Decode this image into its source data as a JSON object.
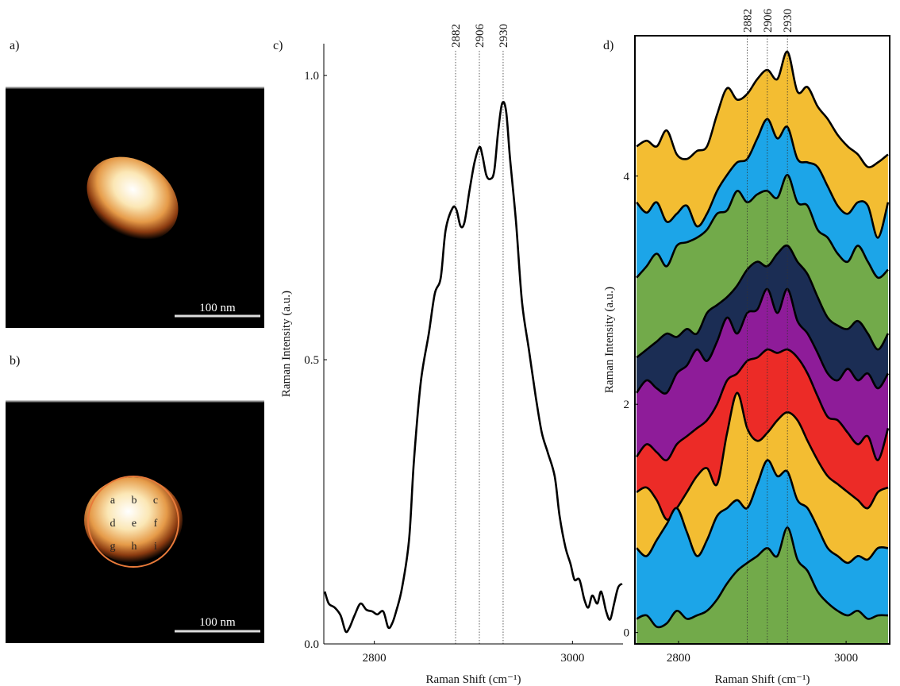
{
  "panel_labels": [
    "a)",
    "b)",
    "c)",
    "d)"
  ],
  "images": [
    {
      "scale_bar": "100 nm"
    },
    {
      "scale_bar": "100 nm",
      "grid_labels": [
        "a",
        "b",
        "c",
        "d",
        "e",
        "f",
        "g",
        "h",
        "i"
      ]
    }
  ],
  "chart_data": [
    {
      "type": "line",
      "x_label": "Raman Shift (cm⁻¹)",
      "y_label": "Raman Intensity (a.u.)",
      "xlim": [
        2749,
        3051
      ],
      "ylim": [
        0,
        1.056
      ],
      "xticks": [
        2800,
        3000
      ],
      "yticks": [
        {
          "value": 0,
          "label": "0.0"
        },
        {
          "value": 0.5,
          "label": "0.5"
        },
        {
          "value": 1,
          "label": "1.0"
        }
      ],
      "peaks": [
        2882,
        2906,
        2930
      ],
      "x": [
        2750,
        2754,
        2760,
        2766,
        2771,
        2775,
        2780,
        2786,
        2792,
        2798,
        2803,
        2809,
        2814,
        2818,
        2822,
        2828,
        2835,
        2840,
        2847,
        2855,
        2861,
        2867,
        2872,
        2879,
        2883,
        2887,
        2891,
        2896,
        2901,
        2906,
        2909,
        2913,
        2917,
        2921,
        2925,
        2929,
        2933,
        2937,
        2943,
        2949,
        2956,
        2963,
        2969,
        2975,
        2982,
        2987,
        2993,
        2998,
        3002,
        3007,
        3012,
        3016,
        3020,
        3025,
        3029,
        3034,
        3038,
        3042,
        3046,
        3050
      ],
      "series": [
        {
          "color": "#000000",
          "values": [
            0.092,
            0.071,
            0.064,
            0.05,
            0.022,
            0.029,
            0.05,
            0.071,
            0.06,
            0.057,
            0.052,
            0.057,
            0.029,
            0.036,
            0.057,
            0.099,
            0.183,
            0.323,
            0.462,
            0.546,
            0.616,
            0.644,
            0.728,
            0.767,
            0.763,
            0.735,
            0.742,
            0.797,
            0.846,
            0.874,
            0.86,
            0.825,
            0.818,
            0.832,
            0.902,
            0.951,
            0.937,
            0.853,
            0.742,
            0.602,
            0.518,
            0.434,
            0.372,
            0.337,
            0.295,
            0.225,
            0.169,
            0.141,
            0.113,
            0.113,
            0.078,
            0.064,
            0.085,
            0.071,
            0.092,
            0.057,
            0.043,
            0.071,
            0.099,
            0.106
          ]
        }
      ]
    },
    {
      "type": "ridgeline",
      "x_label": "Raman Shift (cm⁻¹)",
      "y_label": "Raman Intensity (a.u.)",
      "xlim": [
        2748,
        3052
      ],
      "ylim": [
        -0.1,
        5.23
      ],
      "xticks": [
        2800,
        3000
      ],
      "yticks": [
        0,
        2,
        4
      ],
      "peaks": [
        2882,
        2906,
        2930
      ],
      "x": [
        2750,
        2762,
        2774,
        2786,
        2798,
        2810,
        2822,
        2834,
        2846,
        2858,
        2870,
        2882,
        2894,
        2906,
        2918,
        2930,
        2942,
        2954,
        2966,
        2978,
        2990,
        3002,
        3014,
        3026,
        3038,
        3050
      ],
      "series": [
        {
          "color": "#72aa4a",
          "values": [
            0.12,
            0.15,
            0.05,
            0.08,
            0.19,
            0.12,
            0.15,
            0.19,
            0.29,
            0.43,
            0.54,
            0.61,
            0.67,
            0.74,
            0.67,
            0.92,
            0.64,
            0.54,
            0.36,
            0.26,
            0.19,
            0.15,
            0.19,
            0.12,
            0.15,
            0.15
          ]
        },
        {
          "color": "#1ca5e8",
          "values": [
            0.74,
            0.67,
            0.81,
            0.95,
            1.09,
            0.88,
            0.67,
            0.81,
            1.02,
            1.09,
            1.16,
            1.09,
            1.3,
            1.51,
            1.37,
            1.41,
            1.16,
            1.09,
            0.92,
            0.74,
            0.67,
            0.61,
            0.67,
            0.64,
            0.74,
            0.74
          ]
        },
        {
          "color": "#f3bd32",
          "values": [
            1.23,
            1.27,
            1.16,
            0.99,
            1.09,
            1.23,
            1.37,
            1.44,
            1.3,
            1.75,
            2.1,
            1.79,
            1.68,
            1.75,
            1.86,
            1.93,
            1.86,
            1.68,
            1.51,
            1.37,
            1.3,
            1.23,
            1.16,
            1.09,
            1.23,
            1.27
          ]
        },
        {
          "color": "#ec2b27",
          "values": [
            1.54,
            1.65,
            1.58,
            1.51,
            1.65,
            1.72,
            1.79,
            1.86,
            2.0,
            2.21,
            2.27,
            2.38,
            2.41,
            2.48,
            2.45,
            2.48,
            2.41,
            2.27,
            2.07,
            1.89,
            1.86,
            1.75,
            1.65,
            1.72,
            1.51,
            1.79
          ]
        },
        {
          "color": "#8e1c99",
          "values": [
            2.1,
            2.21,
            2.14,
            2.1,
            2.27,
            2.34,
            2.48,
            2.38,
            2.55,
            2.76,
            2.62,
            2.8,
            2.83,
            3.01,
            2.8,
            3.01,
            2.73,
            2.62,
            2.45,
            2.27,
            2.21,
            2.31,
            2.21,
            2.27,
            2.14,
            2.27
          ]
        },
        {
          "color": "#1b2d54",
          "values": [
            2.41,
            2.48,
            2.55,
            2.62,
            2.59,
            2.66,
            2.62,
            2.8,
            2.87,
            2.94,
            3.04,
            3.18,
            3.25,
            3.21,
            3.32,
            3.39,
            3.25,
            3.14,
            2.94,
            2.76,
            2.69,
            2.66,
            2.73,
            2.62,
            2.48,
            2.62
          ]
        },
        {
          "color": "#72aa4a",
          "values": [
            3.11,
            3.21,
            3.32,
            3.21,
            3.39,
            3.42,
            3.46,
            3.53,
            3.67,
            3.7,
            3.87,
            3.77,
            3.84,
            3.87,
            3.81,
            4.01,
            3.77,
            3.74,
            3.53,
            3.46,
            3.32,
            3.25,
            3.39,
            3.25,
            3.11,
            3.18
          ]
        },
        {
          "color": "#1ca5e8",
          "values": [
            3.77,
            3.68,
            3.77,
            3.6,
            3.67,
            3.74,
            3.56,
            3.67,
            3.87,
            4.01,
            4.12,
            4.15,
            4.33,
            4.5,
            4.33,
            4.43,
            4.15,
            4.12,
            4.08,
            3.91,
            3.74,
            3.67,
            3.77,
            3.74,
            3.46,
            3.77
          ]
        },
        {
          "color": "#f3bd32",
          "values": [
            4.26,
            4.31,
            4.26,
            4.4,
            4.19,
            4.15,
            4.22,
            4.26,
            4.54,
            4.77,
            4.67,
            4.72,
            4.85,
            4.93,
            4.85,
            5.09,
            4.74,
            4.78,
            4.61,
            4.5,
            4.36,
            4.26,
            4.19,
            4.08,
            4.12,
            4.19
          ]
        }
      ]
    }
  ]
}
